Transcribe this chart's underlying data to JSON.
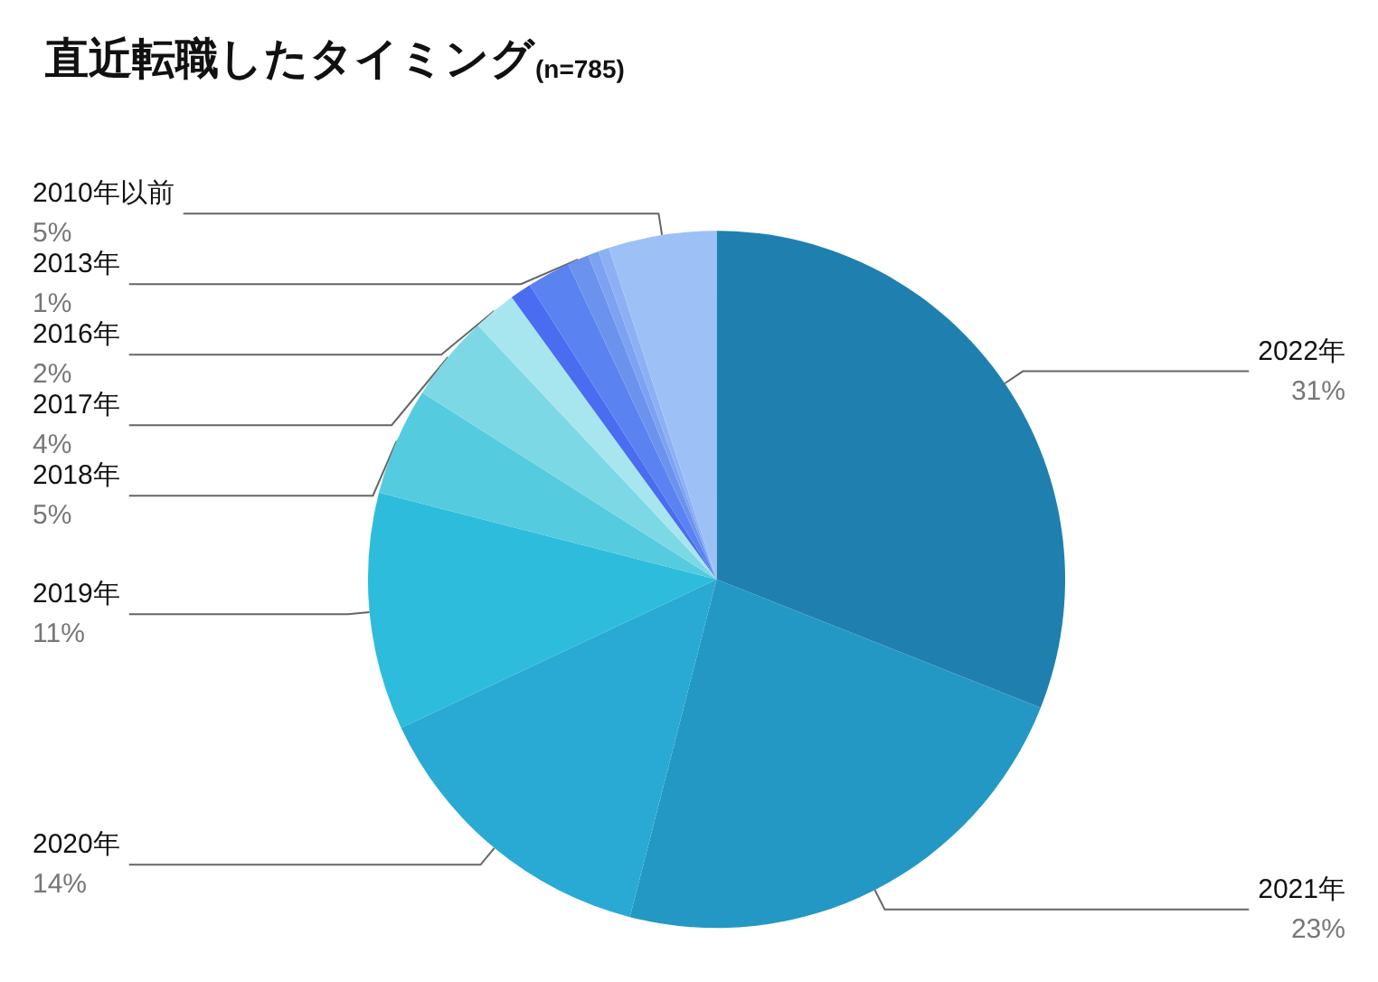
{
  "chart_data": {
    "type": "pie",
    "title": "直近転職したタイミング",
    "subtitle": "(n=785)",
    "categories": [
      "2022年",
      "2021年",
      "2020年",
      "2019年",
      "2018年",
      "2017年",
      "2016年",
      null,
      null,
      "2013年",
      null,
      null,
      "2010年以前"
    ],
    "values": [
      31,
      23,
      14,
      11,
      5,
      4,
      2,
      1,
      2,
      1,
      0.5,
      0.5,
      5
    ],
    "value_labels": [
      "31%",
      "23%",
      "14%",
      "11%",
      "5%",
      "4%",
      "2%",
      null,
      null,
      "1%",
      null,
      null,
      "5%"
    ],
    "colors": [
      "#1f80b0",
      "#2398c4",
      "#29aad4",
      "#2dbcdc",
      "#55cbe0",
      "#7dd8e6",
      "#a8e6ef",
      "#4a6cf0",
      "#5a82f0",
      "#6b93ee",
      "#7ea2f2",
      "#8db0f5",
      "#9dc1f7"
    ],
    "legend": false
  }
}
